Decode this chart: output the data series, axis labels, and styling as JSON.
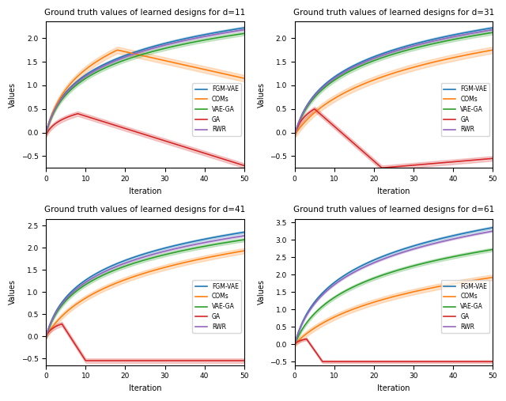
{
  "subplots": [
    {
      "title": "Ground truth values of learned designs for d=11",
      "d": 11,
      "xlim": [
        0,
        50
      ],
      "ylim": [
        -0.75,
        2.35
      ],
      "xticks": [
        0,
        10,
        20,
        30,
        40,
        50
      ]
    },
    {
      "title": "Ground truth values of learned designs for d=31",
      "d": 31,
      "xlim": [
        0,
        50
      ],
      "ylim": [
        -0.75,
        2.35
      ],
      "xticks": [
        0,
        10,
        20,
        30,
        40,
        50
      ]
    },
    {
      "title": "Ground truth values of learned designs for d=41",
      "d": 41,
      "xlim": [
        0,
        50
      ],
      "ylim": [
        -0.65,
        2.65
      ],
      "xticks": [
        0,
        10,
        20,
        30,
        40,
        50
      ]
    },
    {
      "title": "Ground truth values of learned designs for d=61",
      "d": 61,
      "xlim": [
        0,
        50
      ],
      "ylim": [
        -0.6,
        3.6
      ],
      "xticks": [
        0,
        10,
        20,
        30,
        40,
        50
      ]
    }
  ],
  "methods": [
    "FGM-VAE",
    "COMs",
    "VAE-GA",
    "GA",
    "RWR"
  ],
  "colors": {
    "FGM-VAE": "#1f77b4",
    "COMs": "#ff7f0e",
    "VAE-GA": "#2ca02c",
    "GA": "#d62728",
    "RWR": "#9467bd"
  },
  "xlabel": "Iteration",
  "ylabel": "Values",
  "figsize": [
    6.4,
    5.07
  ],
  "dpi": 100
}
